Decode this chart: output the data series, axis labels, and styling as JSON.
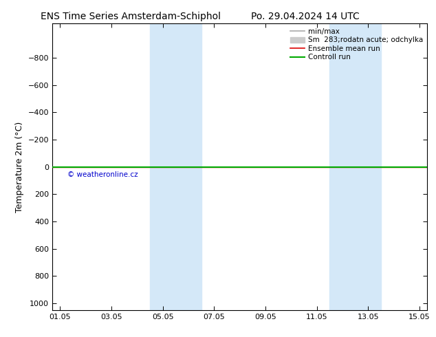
{
  "title_left": "ENS Time Series Amsterdam-Schiphol",
  "title_right": "Po. 29.04.2024 14 UTC",
  "ylabel": "Temperature 2m (°C)",
  "ytick_values": [
    -800,
    -600,
    -400,
    -200,
    0,
    200,
    400,
    600,
    800,
    1000
  ],
  "ylim": [
    -1050,
    1050
  ],
  "xtick_labels": [
    "01.05",
    "03.05",
    "05.05",
    "07.05",
    "09.05",
    "11.05",
    "13.05",
    "15.05"
  ],
  "xtick_positions": [
    0,
    2,
    4,
    6,
    8,
    10,
    12,
    14
  ],
  "xlim": [
    -0.3,
    14.3
  ],
  "background_color": "#ffffff",
  "shaded_regions": [
    {
      "x_start": 3.5,
      "x_end": 5.5,
      "color": "#d4e8f8"
    },
    {
      "x_start": 10.5,
      "x_end": 12.5,
      "color": "#d4e8f8"
    }
  ],
  "green_line_y": 0,
  "red_line_y": 0,
  "copyright_text": "© weatheronline.cz",
  "copyright_color": "#0000cc",
  "copyright_x": 0.3,
  "copyright_y": 60,
  "legend_entries": [
    {
      "label": "min/max",
      "type": "line",
      "color": "#aaaaaa",
      "lw": 1.2
    },
    {
      "label": "Sm  283;rodatn acute; odchylka",
      "type": "patch",
      "color": "#cccccc"
    },
    {
      "label": "Ensemble mean run",
      "type": "line",
      "color": "#dd0000",
      "lw": 1.2
    },
    {
      "label": "Controll run",
      "type": "line",
      "color": "#00aa00",
      "lw": 1.5
    }
  ],
  "title_fontsize": 10,
  "tick_fontsize": 8,
  "ylabel_fontsize": 9,
  "legend_fontsize": 7.5
}
